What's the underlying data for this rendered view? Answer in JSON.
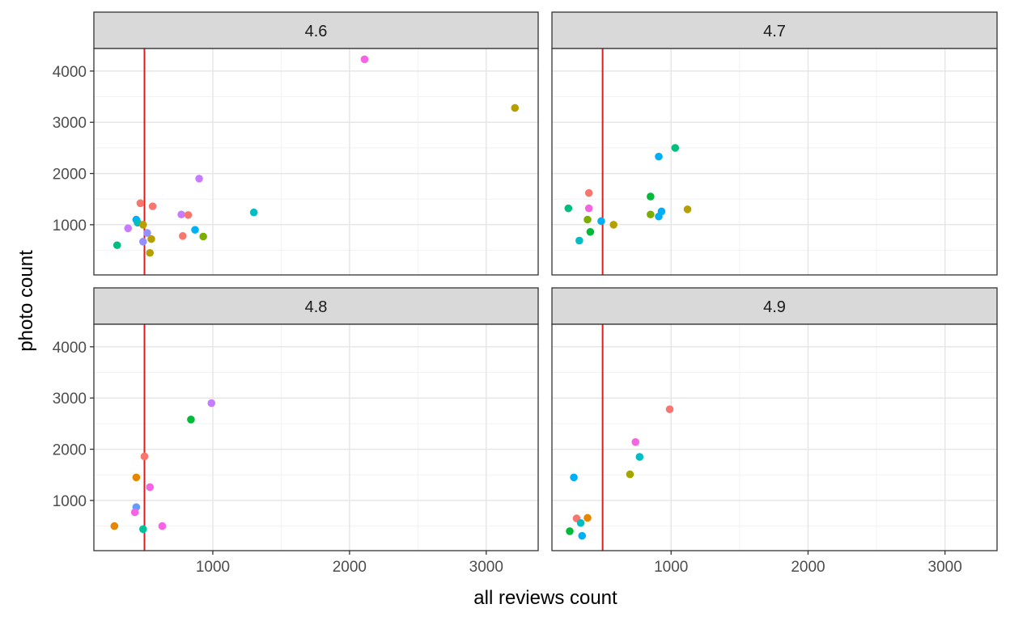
{
  "chart_data": {
    "type": "scatter",
    "xlabel": "all reviews count",
    "ylabel": "photo count",
    "xlim": [
      130,
      3380
    ],
    "ylim": [
      0,
      4500
    ],
    "y_display_min": 20,
    "x_ticks": [
      1000,
      2000,
      3000
    ],
    "y_ticks": [
      1000,
      2000,
      3000,
      4000
    ],
    "reference_line_x": 500,
    "reference_line_color": "#e41a1c",
    "grid": true,
    "facets": [
      {
        "label": "4.6",
        "points": [
          {
            "x": 2110,
            "y": 4230,
            "color": "#f564e3"
          },
          {
            "x": 3210,
            "y": 3280,
            "color": "#b79f00"
          },
          {
            "x": 900,
            "y": 1900,
            "color": "#c77cff"
          },
          {
            "x": 470,
            "y": 1420,
            "color": "#f8766d"
          },
          {
            "x": 560,
            "y": 1360,
            "color": "#f8766d"
          },
          {
            "x": 1300,
            "y": 1240,
            "color": "#00bfc4"
          },
          {
            "x": 770,
            "y": 1200,
            "color": "#c77cff"
          },
          {
            "x": 820,
            "y": 1190,
            "color": "#f8766d"
          },
          {
            "x": 440,
            "y": 1100,
            "color": "#00b0f6"
          },
          {
            "x": 450,
            "y": 1040,
            "color": "#00bfc4"
          },
          {
            "x": 490,
            "y": 1000,
            "color": "#b79f00"
          },
          {
            "x": 380,
            "y": 930,
            "color": "#c77cff"
          },
          {
            "x": 870,
            "y": 900,
            "color": "#00b0f6"
          },
          {
            "x": 520,
            "y": 840,
            "color": "#9590ff"
          },
          {
            "x": 780,
            "y": 780,
            "color": "#f8766d"
          },
          {
            "x": 930,
            "y": 770,
            "color": "#7cae00"
          },
          {
            "x": 550,
            "y": 720,
            "color": "#b79f00"
          },
          {
            "x": 490,
            "y": 670,
            "color": "#9590ff"
          },
          {
            "x": 300,
            "y": 600,
            "color": "#00bf7d"
          },
          {
            "x": 540,
            "y": 450,
            "color": "#b79f00"
          }
        ]
      },
      {
        "label": "4.7",
        "points": [
          {
            "x": 1030,
            "y": 2500,
            "color": "#00bf7d"
          },
          {
            "x": 910,
            "y": 2330,
            "color": "#00b0f6"
          },
          {
            "x": 400,
            "y": 1620,
            "color": "#f8766d"
          },
          {
            "x": 850,
            "y": 1550,
            "color": "#00ba38"
          },
          {
            "x": 250,
            "y": 1320,
            "color": "#00bf7d"
          },
          {
            "x": 400,
            "y": 1320,
            "color": "#f564e3"
          },
          {
            "x": 1120,
            "y": 1300,
            "color": "#b79f00"
          },
          {
            "x": 930,
            "y": 1260,
            "color": "#00b0f6"
          },
          {
            "x": 850,
            "y": 1200,
            "color": "#7cae00"
          },
          {
            "x": 910,
            "y": 1160,
            "color": "#00b0f6"
          },
          {
            "x": 390,
            "y": 1100,
            "color": "#7cae00"
          },
          {
            "x": 490,
            "y": 1070,
            "color": "#00b0f6"
          },
          {
            "x": 580,
            "y": 1000,
            "color": "#b79f00"
          },
          {
            "x": 410,
            "y": 860,
            "color": "#00ba38"
          },
          {
            "x": 330,
            "y": 690,
            "color": "#00bfc4"
          }
        ]
      },
      {
        "label": "4.8",
        "points": [
          {
            "x": 990,
            "y": 2900,
            "color": "#c77cff"
          },
          {
            "x": 840,
            "y": 2580,
            "color": "#00ba38"
          },
          {
            "x": 500,
            "y": 1860,
            "color": "#f8766d"
          },
          {
            "x": 440,
            "y": 1450,
            "color": "#e58700"
          },
          {
            "x": 540,
            "y": 1260,
            "color": "#f564e3"
          },
          {
            "x": 440,
            "y": 870,
            "color": "#619cff"
          },
          {
            "x": 430,
            "y": 770,
            "color": "#f564e3"
          },
          {
            "x": 280,
            "y": 500,
            "color": "#e58700"
          },
          {
            "x": 630,
            "y": 500,
            "color": "#f564e3"
          },
          {
            "x": 490,
            "y": 440,
            "color": "#00c19a"
          }
        ]
      },
      {
        "label": "4.9",
        "points": [
          {
            "x": 990,
            "y": 2780,
            "color": "#f8766d"
          },
          {
            "x": 740,
            "y": 2140,
            "color": "#f564e3"
          },
          {
            "x": 770,
            "y": 1850,
            "color": "#00bfc4"
          },
          {
            "x": 700,
            "y": 1510,
            "color": "#a3a500"
          },
          {
            "x": 290,
            "y": 1450,
            "color": "#00b0f6"
          },
          {
            "x": 390,
            "y": 660,
            "color": "#e58700"
          },
          {
            "x": 310,
            "y": 650,
            "color": "#f8766d"
          },
          {
            "x": 340,
            "y": 560,
            "color": "#00bfc4"
          },
          {
            "x": 260,
            "y": 400,
            "color": "#00ba38"
          },
          {
            "x": 350,
            "y": 310,
            "color": "#00b0f6"
          }
        ]
      }
    ]
  }
}
